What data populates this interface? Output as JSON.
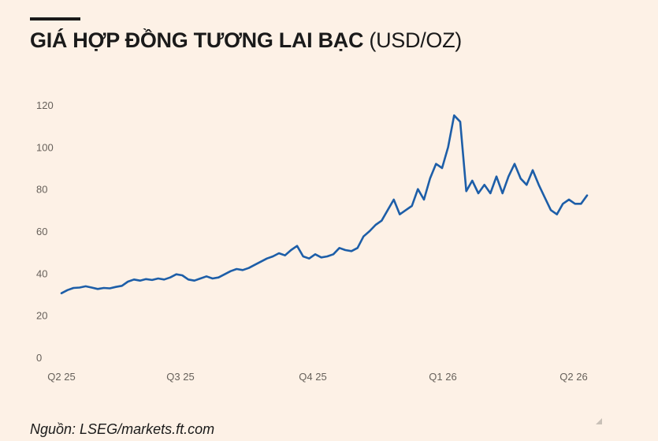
{
  "header": {
    "title_main": "GIÁ HỢP ĐỒNG TƯƠNG LAI BẠC",
    "title_unit": "(USD/OZ)"
  },
  "footer": {
    "source": "Nguồn: LSEG/markets.ft.com"
  },
  "colors": {
    "line": "#1d5ea8",
    "background": "#fdf1e6",
    "axis_text": "#66605a"
  },
  "chart_data": {
    "type": "line",
    "title": "GIÁ HỢP ĐỒNG TƯƠNG LAI BẠC (USD/OZ)",
    "xlabel": "",
    "ylabel": "",
    "ylim": [
      0,
      120
    ],
    "yticks": [
      "0",
      "20",
      "40",
      "60",
      "80",
      "100",
      "120"
    ],
    "xticks": [
      "Q2 25",
      "Q3 25",
      "Q4 25",
      "Q1 26",
      "Q2 26"
    ],
    "grid": false,
    "legend": "none",
    "series": [
      {
        "values": [
          30.5,
          32.0,
          33.0,
          33.2,
          33.8,
          33.2,
          32.5,
          33.0,
          32.8,
          33.5,
          34.0,
          36.0,
          37.0,
          36.5,
          37.2,
          36.8,
          37.5,
          37.0,
          38.0,
          39.5,
          39.0,
          37.0,
          36.5,
          37.5,
          38.5,
          37.5,
          38.0,
          39.5,
          41.0,
          42.0,
          41.5,
          42.5,
          44.0,
          45.5,
          47.0,
          48.0,
          49.5,
          48.5,
          51.0,
          53.0,
          48.0,
          47.0,
          49.0,
          47.5,
          48.0,
          49.0,
          52.0,
          51.0,
          50.5,
          52.0,
          57.5,
          60.0,
          63.0,
          65.0,
          70.0,
          75.0,
          68.0,
          70.0,
          72.0,
          80.0,
          75.0,
          85.0,
          92.0,
          90.0,
          100.0,
          115.0,
          112.0,
          79.0,
          84.0,
          78.0,
          82.0,
          78.0,
          86.0,
          78.0,
          86.0,
          92.0,
          85.0,
          82.0,
          89.0,
          82.0,
          76.0,
          70.0,
          68.0,
          73.0,
          75.0,
          73.0,
          73.0,
          77.0
        ]
      }
    ]
  }
}
